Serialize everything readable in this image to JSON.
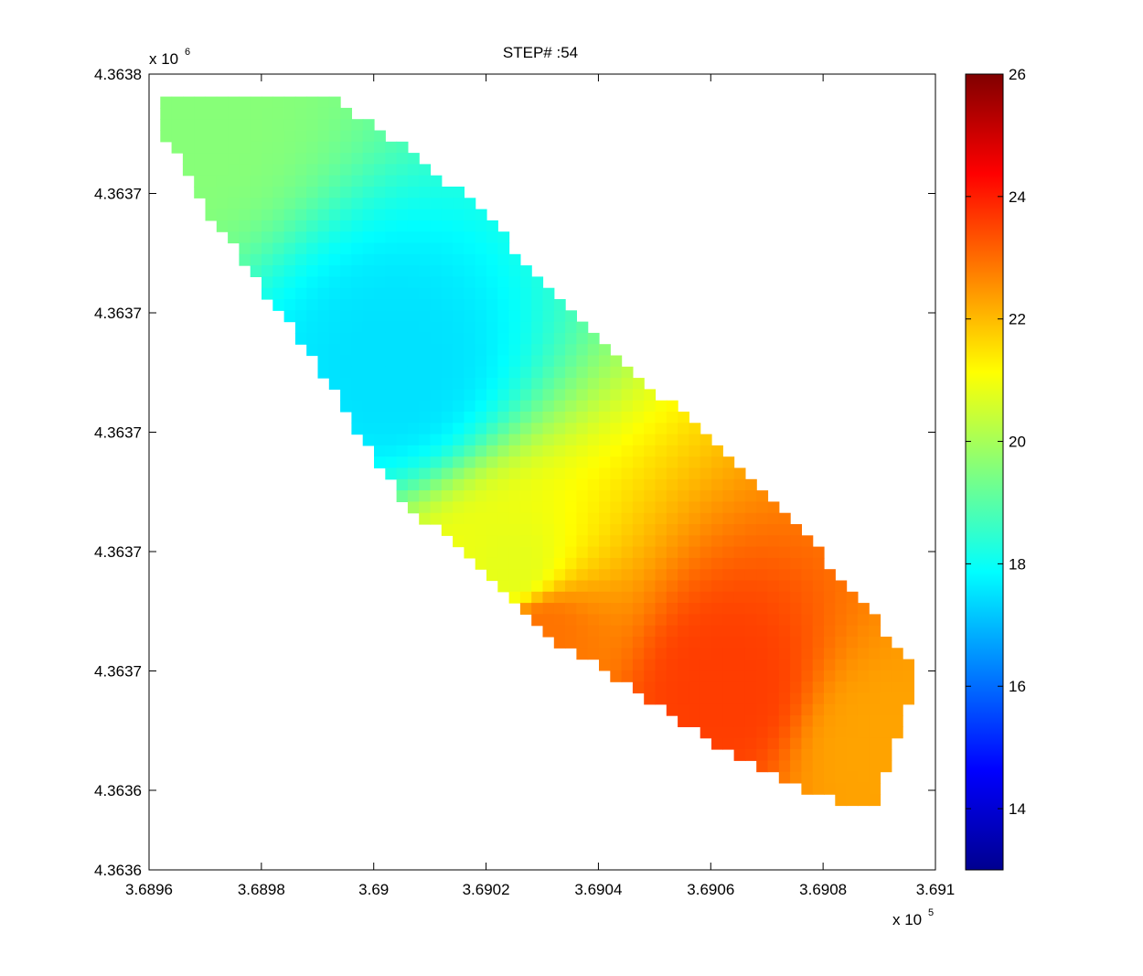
{
  "chart_data": {
    "type": "heatmap",
    "title": "STEP# :54",
    "xlabel": "",
    "ylabel": "",
    "x_exponent_label": {
      "base": "x 10",
      "exp": "5"
    },
    "y_exponent_label": {
      "base": "x 10",
      "exp": "6"
    },
    "xlim": [
      3.6896,
      3.691
    ],
    "ylim": [
      4.3636,
      4.3638
    ],
    "x_ticks": [
      3.6896,
      3.6898,
      3.69,
      3.6902,
      3.6904,
      3.6906,
      3.6908,
      3.691
    ],
    "x_tick_labels": [
      "3.6896",
      "3.6898",
      "3.69",
      "3.6902",
      "3.6904",
      "3.6906",
      "3.6908",
      "3.691"
    ],
    "y_ticks": [
      4.3638,
      4.36377,
      4.36374,
      4.36371,
      4.36368,
      4.36365,
      4.36362,
      4.3636
    ],
    "y_tick_labels": [
      "4.3638",
      "4.3637",
      "4.3637",
      "4.3637",
      "4.3637",
      "4.3637",
      "4.3636",
      "4.3636"
    ],
    "colormap": "jet",
    "colorbar": {
      "range": [
        13,
        26
      ],
      "ticks": [
        14,
        16,
        18,
        20,
        22,
        24,
        26
      ],
      "tick_labels": [
        "14",
        "16",
        "18",
        "20",
        "22",
        "24",
        "26"
      ]
    },
    "field_description_points": [
      {
        "x": 3.68966,
        "y": 4.36379,
        "value": 19.6
      },
      {
        "x": 3.69004,
        "y": 4.363725,
        "value": 17.5
      },
      {
        "x": 3.69025,
        "y": 4.363675,
        "value": 20.8
      },
      {
        "x": 3.6903,
        "y": 4.36366,
        "value": 22.9
      },
      {
        "x": 3.69062,
        "y": 4.363645,
        "value": 23.6
      },
      {
        "x": 3.6909,
        "y": 4.36363,
        "value": 22.3
      }
    ]
  }
}
